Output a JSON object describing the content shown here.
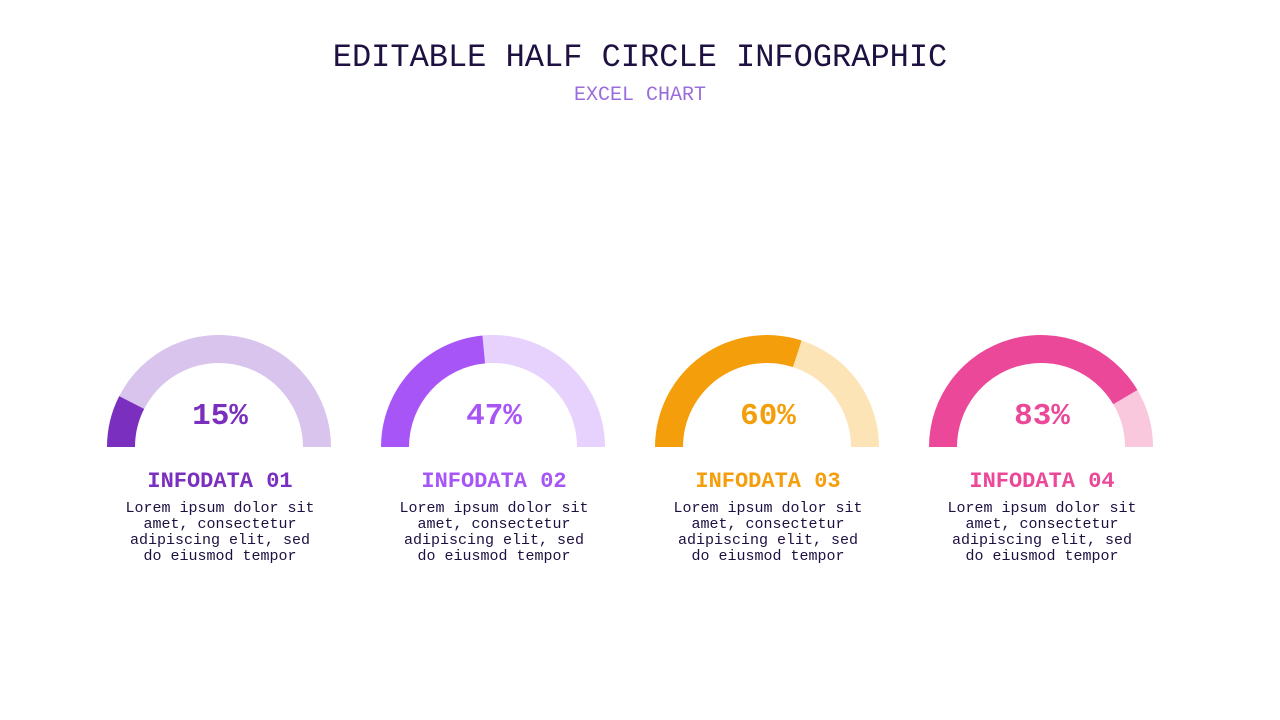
{
  "header": {
    "title": "EDITABLE HALF CIRCLE INFOGRAPHIC",
    "subtitle": "EXCEL CHART"
  },
  "items": [
    {
      "pct_text": "15%",
      "label": "INFODATA 01",
      "desc": "Lorem ipsum dolor sit amet, consectetur adipiscing elit, sed do eiusmod tempor",
      "color": "#7b2fbe",
      "track_color": "#d8c4ec"
    },
    {
      "pct_text": "47%",
      "label": "INFODATA 02",
      "desc": "Lorem ipsum dolor sit amet, consectetur adipiscing elit, sed do eiusmod tempor",
      "color": "#a855f7",
      "track_color": "#e6d2fc"
    },
    {
      "pct_text": "60%",
      "label": "INFODATA 03",
      "desc": "Lorem ipsum dolor sit amet, consectetur adipiscing elit, sed do eiusmod tempor",
      "color": "#f59e0b",
      "track_color": "#fde4b6"
    },
    {
      "pct_text": "83%",
      "label": "INFODATA 04",
      "desc": "Lorem ipsum dolor sit amet, consectetur adipiscing elit, sed do eiusmod tempor",
      "color": "#ec4899",
      "track_color": "#f9c8dd"
    }
  ],
  "chart_data": {
    "type": "half-donut",
    "title": "EDITABLE HALF CIRCLE INFOGRAPHIC",
    "subtitle": "EXCEL CHART",
    "categories": [
      "INFODATA 01",
      "INFODATA 02",
      "INFODATA 03",
      "INFODATA 04"
    ],
    "values": [
      15,
      47,
      60,
      83
    ],
    "unit": "%",
    "max": 100
  }
}
